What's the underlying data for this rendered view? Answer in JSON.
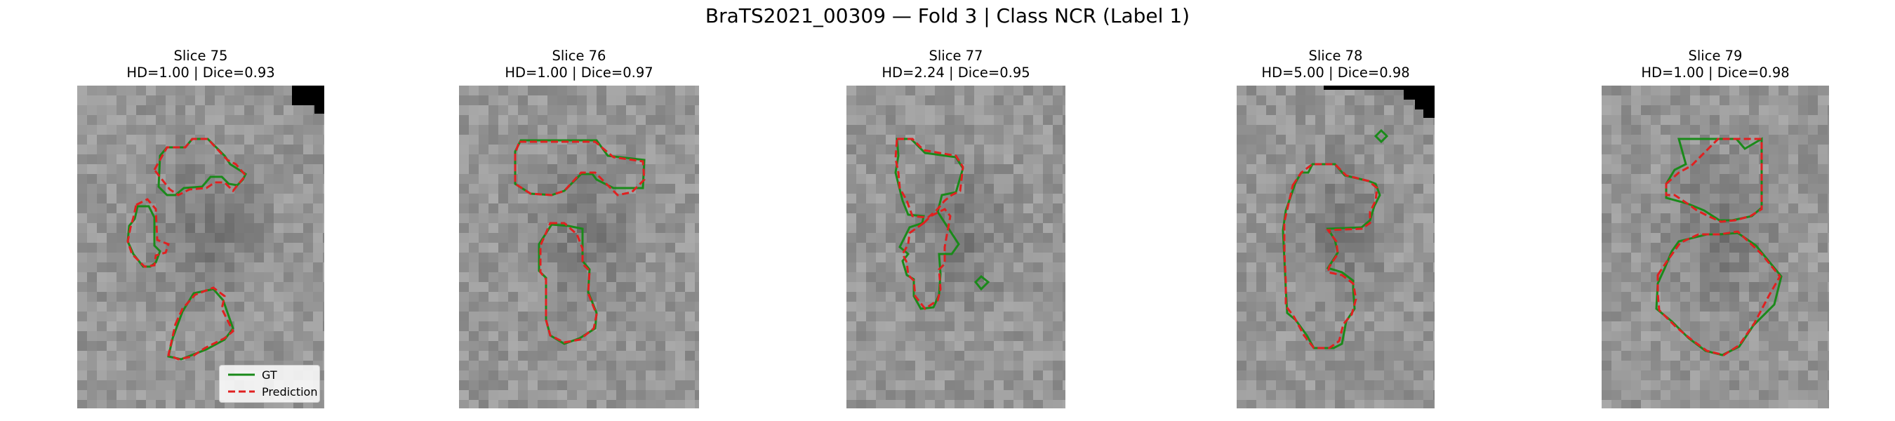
{
  "figure": {
    "title": "BraTS2021_00309 — Fold 3 | Class NCR (Label 1)",
    "colors": {
      "gt": "#1a8a1a",
      "prediction": "#e02020",
      "background": "#ffffff"
    }
  },
  "legend": {
    "gt_label": "GT",
    "prediction_label": "Prediction"
  },
  "panels": [
    {
      "slice": "Slice 75",
      "metrics": "HD=1.00 | Dice=0.93"
    },
    {
      "slice": "Slice 76",
      "metrics": "HD=1.00 | Dice=0.97"
    },
    {
      "slice": "Slice 77",
      "metrics": "HD=2.24 | Dice=0.95"
    },
    {
      "slice": "Slice 78",
      "metrics": "HD=5.00 | Dice=0.98"
    },
    {
      "slice": "Slice 79",
      "metrics": "HD=1.00 | Dice=0.98"
    }
  ]
}
